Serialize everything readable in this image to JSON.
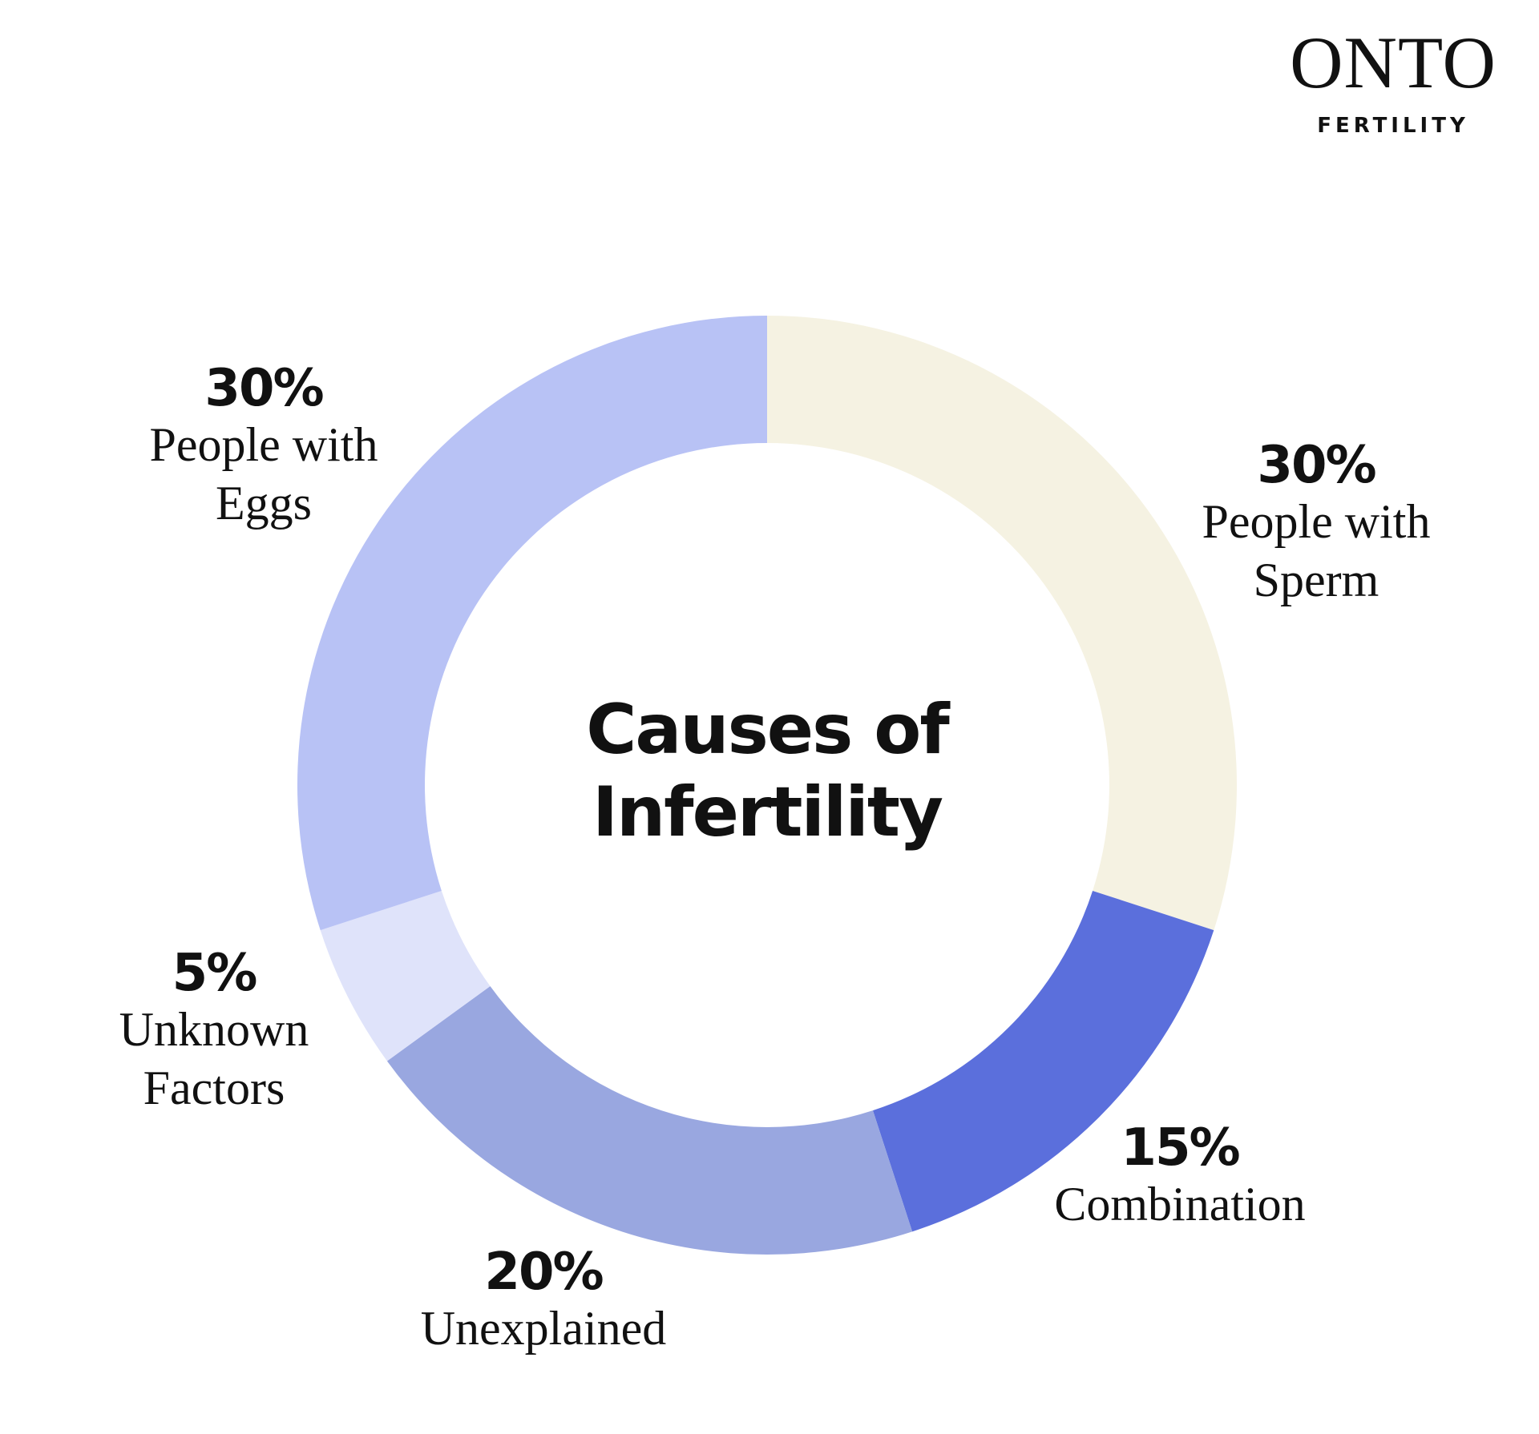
{
  "brand": {
    "name": "ONTO",
    "tagline": "FERTILITY"
  },
  "chart_data": {
    "type": "donut",
    "title": "Causes of Infertility",
    "categories": [
      "People with Sperm",
      "Combination",
      "Unexplained",
      "Unknown Factors",
      "People with Eggs"
    ],
    "values": [
      30,
      15,
      20,
      5,
      30
    ],
    "value_labels": [
      "30%",
      "15%",
      "20%",
      "5%",
      "30%"
    ],
    "colors": [
      "#f5f2e2",
      "#5b6fdc",
      "#99a7e0",
      "#dfe3fa",
      "#b8c2f5"
    ]
  }
}
